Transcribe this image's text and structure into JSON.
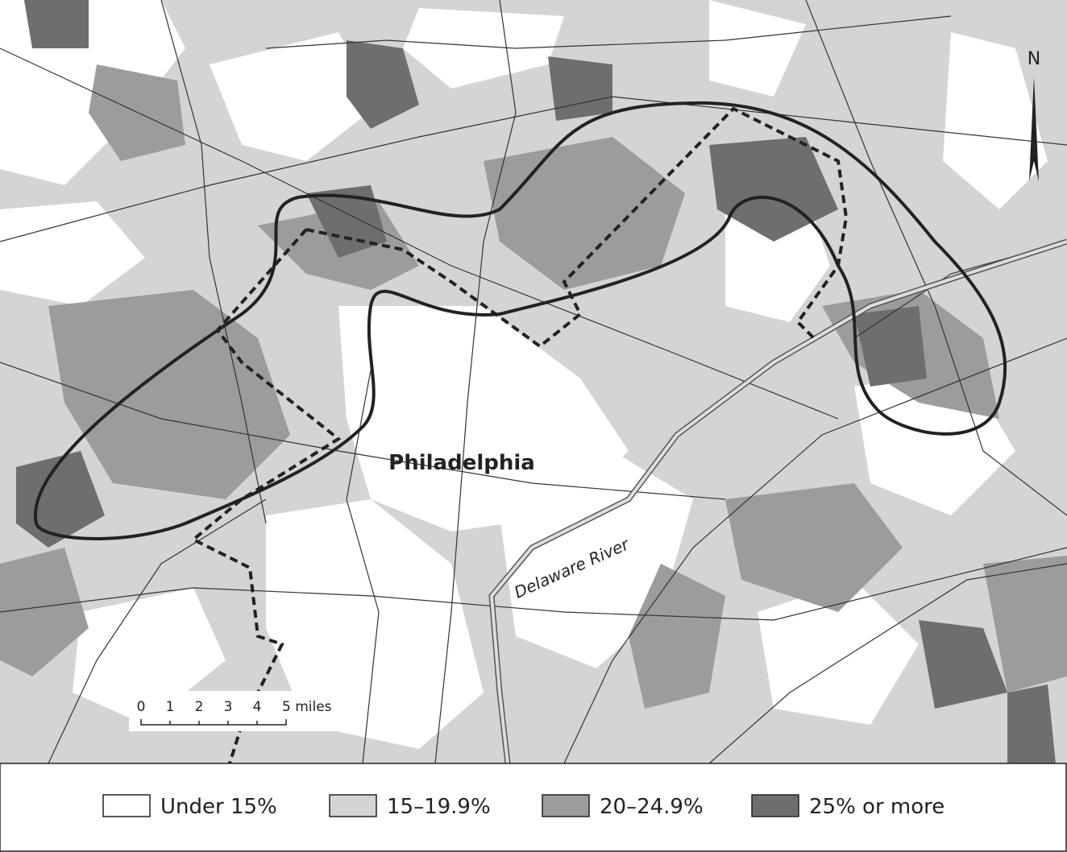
{
  "map": {
    "north_label": "N",
    "city_label": "Philadelphia",
    "river_label": "Delaware River",
    "scale": {
      "labels": [
        "0",
        "1",
        "2",
        "3",
        "4",
        "5 miles"
      ]
    },
    "legend": [
      {
        "label": "Under 15%",
        "color": "#ffffff"
      },
      {
        "label": "15–19.9%",
        "color": "#d4d4d4"
      },
      {
        "label": "20–24.9%",
        "color": "#9c9c9c"
      },
      {
        "label": "25% or more",
        "color": "#6e6e6e"
      }
    ]
  }
}
